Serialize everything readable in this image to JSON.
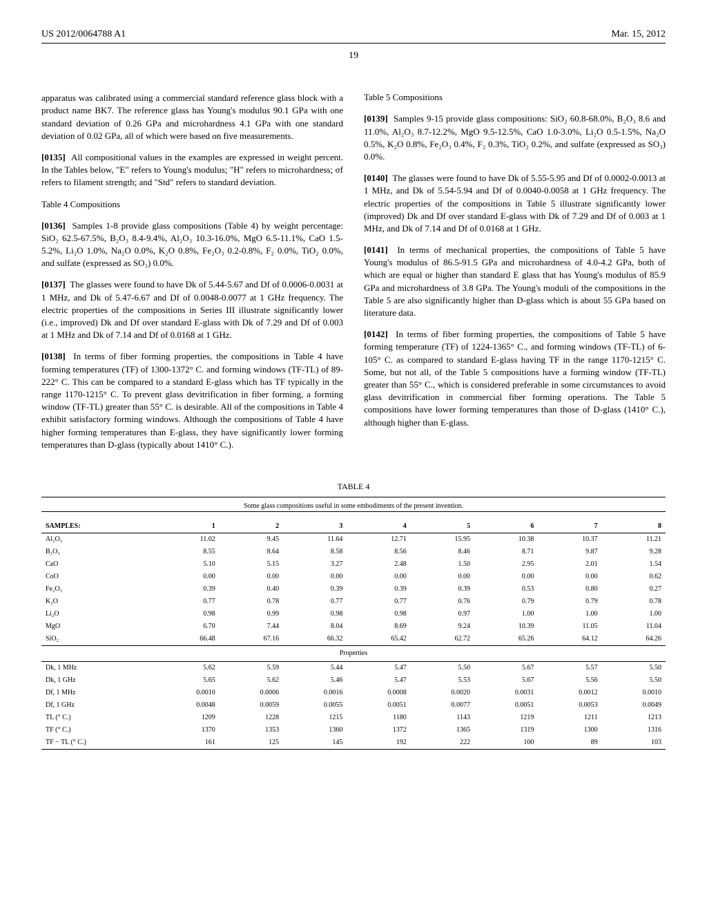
{
  "header": {
    "left": "US 2012/0064788 A1",
    "right": "Mar. 15, 2012"
  },
  "page_number": "19",
  "left_col": {
    "p1": "apparatus was calibrated using a commercial standard reference glass block with a product name BK7. The reference glass has Young's modulus 90.1 GPa with one standard deviation of 0.26 GPa and microhardness 4.1 GPa with one standard deviation of 0.02 GPa, all of which were based on five measurements.",
    "p2_num": "[0135]",
    "p2": "All compositional values in the examples are expressed in weight percent. In the Tables below, \"E\" refers to Young's modulus; \"H\" refers to microhardness; σf refers to filament strength; and \"Std\" refers to standard deviation.",
    "h1": "Table 4 Compositions",
    "p3_num": "[0136]",
    "p3": "Samples 1-8 provide glass compositions (Table 4) by weight percentage: SiO₂ 62.5-67.5%, B₂O₃ 8.4-9.4%, Al₂O₃ 10.3-16.0%, MgO 6.5-11.1%, CaO 1.5-5.2%, Li₂O 1.0%, Na₂O 0.0%, K₂O 0.8%, Fe₂O₃ 0.2-0.8%, F₂ 0.0%, TiO₂ 0.0%, and sulfate (expressed as SO₃) 0.0%.",
    "p4_num": "[0137]",
    "p4": "The glasses were found to have Dk of 5.44-5.67 and Df of 0.0006-0.0031 at 1 MHz, and Dk of 5.47-6.67 and Df of 0.0048-0.0077 at 1 GHz frequency. The electric properties of the compositions in Series III illustrate significantly lower (i.e., improved) Dk and Df over standard E-glass with Dk of 7.29 and Df of 0.003 at 1 MHz and Dk of 7.14 and Df of 0.0168 at 1 GHz.",
    "p5_num": "[0138]",
    "p5": "In terms of fiber forming properties, the compositions in Table 4 have forming temperatures (TF) of 1300-1372° C. and forming windows (TF-TL) of 89-222° C. This can be compared to a standard E-glass which has TF typically in the range 1170-1215° C. To prevent glass devitrification in fiber forming, a forming window (TF-TL) greater than 55° C. is desirable. All of the compositions in Table 4 exhibit satisfactory forming windows. Although the compositions of Table 4 have higher forming temperatures than E-glass, they have significantly lower forming temperatures than D-glass (typically about 1410° C.)."
  },
  "right_col": {
    "h1": "Table 5 Compositions",
    "p1_num": "[0139]",
    "p1": "Samples 9-15 provide glass compositions: SiO₂ 60.8-68.0%, B₂O₃ 8.6 and 11.0%, Al₂O₃ 8.7-12.2%, MgO 9.5-12.5%, CaO 1.0-3.0%, Li₂O 0.5-1.5%, Na₂O 0.5%, K₂O 0.8%, Fe₂O₃ 0.4%, F₂ 0.3%, TiO₂ 0.2%, and sulfate (expressed as SO₃) 0.0%.",
    "p2_num": "[0140]",
    "p2": "The glasses were found to have Dk of 5.55-5.95 and Df of 0.0002-0.0013 at 1 MHz, and Dk of 5.54-5.94 and Df of 0.0040-0.0058 at 1 GHz frequency. The electric properties of the compositions in Table 5 illustrate significantly lower (improved) Dk and Df over standard E-glass with Dk of 7.29 and Df of 0.003 at 1 MHz, and Dk of 7.14 and Df of 0.0168 at 1 GHz.",
    "p3_num": "[0141]",
    "p3": "In terms of mechanical properties, the compositions of Table 5 have Young's modulus of 86.5-91.5 GPa and microhardness of 4.0-4.2 GPa, both of which are equal or higher than standard E glass that has Young's modulus of 85.9 GPa and microhardness of 3.8 GPa. The Young's moduli of the compositions in the Table 5 are also significantly higher than D-glass which is about 55 GPa based on literature data.",
    "p4_num": "[0142]",
    "p4": "In terms of fiber forming properties, the compositions of Table 5 have forming temperature (TF) of 1224-1365° C., and forming windows (TF-TL) of 6-105° C. as compared to standard E-glass having TF in the range 1170-1215° C. Some, but not all, of the Table 5 compositions have a forming window (TF-TL) greater than 55° C., which is considered preferable in some circumstances to avoid glass devitrification in commercial fiber forming operations. The Table 5 compositions have lower forming temperatures than those of D-glass (1410° C.), although higher than E-glass."
  },
  "table4": {
    "title": "TABLE 4",
    "caption": "Some glass compositions useful in some embodiments of the present invention.",
    "header_label": "SAMPLES:",
    "cols": [
      "1",
      "2",
      "3",
      "4",
      "5",
      "6",
      "7",
      "8"
    ],
    "comp_rows": [
      {
        "label": "Al₂O₃",
        "vals": [
          "11.02",
          "9.45",
          "11.64",
          "12.71",
          "15.95",
          "10.38",
          "10.37",
          "11.21"
        ]
      },
      {
        "label": "B₂O₃",
        "vals": [
          "8.55",
          "8.64",
          "8.58",
          "8.56",
          "8.46",
          "8.71",
          "9.87",
          "9.28"
        ]
      },
      {
        "label": "CaO",
        "vals": [
          "5.10",
          "5.15",
          "3.27",
          "2.48",
          "1.50",
          "2.95",
          "2.01",
          "1.54"
        ]
      },
      {
        "label": "CoO",
        "vals": [
          "0.00",
          "0.00",
          "0.00",
          "0.00",
          "0.00",
          "0.00",
          "0.00",
          "0.62"
        ]
      },
      {
        "label": "Fe₂O₃",
        "vals": [
          "0.39",
          "0.40",
          "0.39",
          "0.39",
          "0.39",
          "0.53",
          "0.80",
          "0.27"
        ]
      },
      {
        "label": "K₂O",
        "vals": [
          "0.77",
          "0.78",
          "0.77",
          "0.77",
          "0.76",
          "0.79",
          "0.79",
          "0.78"
        ]
      },
      {
        "label": "Li₂O",
        "vals": [
          "0.98",
          "0.99",
          "0.98",
          "0.98",
          "0.97",
          "1.00",
          "1.00",
          "1.00"
        ]
      },
      {
        "label": "MgO",
        "vals": [
          "6.70",
          "7.44",
          "8.04",
          "8.69",
          "9.24",
          "10.39",
          "11.05",
          "11.04"
        ]
      },
      {
        "label": "SiO₂",
        "vals": [
          "66.48",
          "67.16",
          "66.32",
          "65.42",
          "62.72",
          "65.26",
          "64.12",
          "64.26"
        ]
      }
    ],
    "props_label": "Properties",
    "prop_rows": [
      {
        "label": "Dk, 1 MHz",
        "vals": [
          "5.62",
          "5.59",
          "5.44",
          "5.47",
          "5.50",
          "5.67",
          "5.57",
          "5.50"
        ]
      },
      {
        "label": "Dk, 1 GHz",
        "vals": [
          "5.65",
          "5.62",
          "5.46",
          "5.47",
          "5.53",
          "5.67",
          "5.56",
          "5.50"
        ]
      },
      {
        "label": "Df, 1 MHz",
        "vals": [
          "0.0010",
          "0.0006",
          "0.0016",
          "0.0008",
          "0.0020",
          "0.0031",
          "0.0012",
          "0.0010"
        ]
      },
      {
        "label": "Df, 1 GHz",
        "vals": [
          "0.0048",
          "0.0059",
          "0.0055",
          "0.0051",
          "0.0077",
          "0.0051",
          "0.0053",
          "0.0049"
        ]
      },
      {
        "label": "TL (° C.)",
        "vals": [
          "1209",
          "1228",
          "1215",
          "1180",
          "1143",
          "1219",
          "1211",
          "1213"
        ]
      },
      {
        "label": "TF (° C.)",
        "vals": [
          "1370",
          "1353",
          "1360",
          "1372",
          "1365",
          "1319",
          "1300",
          "1316"
        ]
      },
      {
        "label": "TF − TL (° C.)",
        "vals": [
          "161",
          "125",
          "145",
          "192",
          "222",
          "100",
          "89",
          "103"
        ]
      }
    ]
  }
}
